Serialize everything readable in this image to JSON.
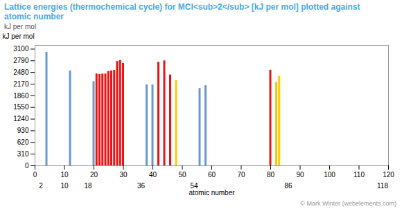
{
  "chart_data": {
    "type": "bar",
    "title": "Lattice energies (thermochemical cycle) for MCl<sub>2</sub> [kJ per mol] plotted against",
    "subtitle": "atomic number",
    "xlabel": "atomic number",
    "ylabel": "kJ per mol",
    "x": [
      4,
      12,
      20,
      21,
      22,
      23,
      24,
      25,
      26,
      27,
      28,
      29,
      30,
      38,
      40,
      42,
      44,
      46,
      48,
      56,
      58,
      80,
      82,
      83
    ],
    "values": [
      3017,
      2523,
      2237,
      2440,
      2430,
      2440,
      2440,
      2510,
      2523,
      2536,
      2773,
      2799,
      2724,
      2152,
      2150,
      2750,
      2790,
      2414,
      2270,
      2056,
      2130,
      2540,
      2218,
      2380
    ],
    "colors": [
      "#6699cc",
      "#6699cc",
      "#6699cc",
      "#ee1111",
      "#ee1111",
      "#ee1111",
      "#ee1111",
      "#ee1111",
      "#ee1111",
      "#ee1111",
      "#ee1111",
      "#ee1111",
      "#ee1111",
      "#6699cc",
      "#6699cc",
      "#ee1111",
      "#ee1111",
      "#ee1111",
      "#ffcc00",
      "#6699cc",
      "#6699cc",
      "#ee1111",
      "#ffcc00",
      "#ffcc00"
    ],
    "xlim": [
      0,
      120
    ],
    "xticks": [
      0,
      10,
      20,
      30,
      40,
      50,
      60,
      70,
      80,
      90,
      100,
      110,
      120
    ],
    "x2ticks": [
      2,
      10,
      18,
      36,
      54,
      86,
      118
    ],
    "ylim": [
      0,
      3200
    ],
    "yticks": [
      0,
      310,
      620,
      930,
      1240,
      1550,
      1860,
      2170,
      2480,
      2790,
      3100
    ],
    "grid": false,
    "annotations": [
      "© Mark Winter (webelements.com)"
    ]
  }
}
